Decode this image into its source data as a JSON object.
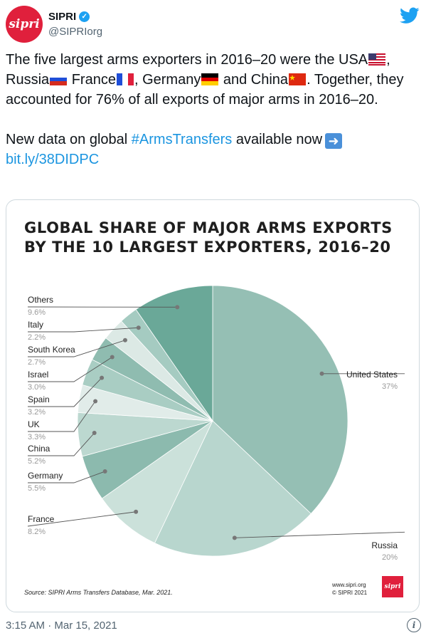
{
  "author": {
    "logo_text": "sipri",
    "name": "SIPRI",
    "handle": "@SIPRIorg"
  },
  "tweet": {
    "line1_a": "The five largest arms exporters in 2016–20 were the USA",
    "line1_b": ",",
    "russia": "Russia",
    "france": " France",
    "germany": ", Germany",
    "china": " and China",
    "line_rest": ". Together, they accounted for 76% of all exports of major arms in 2016–20.",
    "para2_a": "New data on global ",
    "hashtag": "#ArmsTransfers",
    "para2_b": " available now",
    "link": "bit.ly/38DIDPC"
  },
  "chart_data": {
    "type": "pie",
    "title": "GLOBAL SHARE OF MAJOR ARMS EXPORTS BY THE 10 LARGEST EXPORTERS, 2016–20",
    "unit": "%",
    "slices": [
      {
        "label": "United States",
        "value": 37,
        "display": "37%",
        "color": "#95bfb4"
      },
      {
        "label": "Russia",
        "value": 20,
        "display": "20%",
        "color": "#b8d6ce"
      },
      {
        "label": "France",
        "value": 8.2,
        "display": "8.2%",
        "color": "#cbe1da"
      },
      {
        "label": "Germany",
        "value": 5.5,
        "display": "5.5%",
        "color": "#8cbaae"
      },
      {
        "label": "China",
        "value": 5.2,
        "display": "5.2%",
        "color": "#bcd8d0"
      },
      {
        "label": "UK",
        "value": 3.3,
        "display": "3.3%",
        "color": "#e1ece9"
      },
      {
        "label": "Spain",
        "value": 3.2,
        "display": "3.2%",
        "color": "#a9cdc3"
      },
      {
        "label": "Israel",
        "value": 3.0,
        "display": "3.0%",
        "color": "#8fbcb0"
      },
      {
        "label": "South Korea",
        "value": 2.7,
        "display": "2.7%",
        "color": "#dce9e5"
      },
      {
        "label": "Italy",
        "value": 2.2,
        "display": "2.2%",
        "color": "#a5cbc1"
      },
      {
        "label": "Others",
        "value": 9.6,
        "display": "9.6%",
        "color": "#6aa898"
      }
    ],
    "source": "Source: SIPRI Arms Transfers Database, Mar. 2021.",
    "credit_line1": "www.sipri.org",
    "credit_line2": "© SIPRI 2021",
    "logo_text": "sipri"
  },
  "footer": {
    "timestamp": "3:15 AM · Mar 15, 2021"
  },
  "colors": {
    "brand": "#e0203c",
    "link": "#1b95e0",
    "twitter": "#1da1f2"
  }
}
